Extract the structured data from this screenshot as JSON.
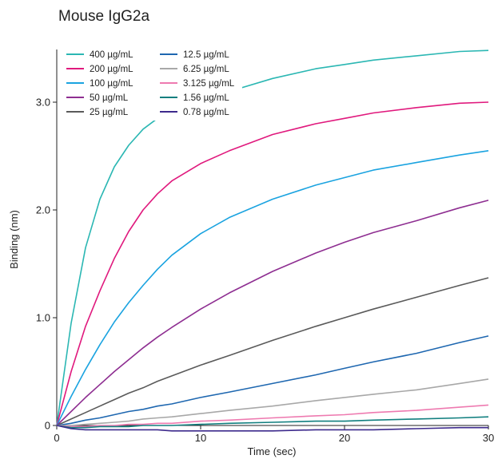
{
  "chart_data": {
    "type": "line",
    "title": "Mouse IgG2a",
    "xlabel": "Time (sec)",
    "ylabel": "Binding (nm)",
    "xlim": [
      0,
      30
    ],
    "ylim": [
      0,
      3.5
    ],
    "x_ticks": [
      0,
      10,
      20,
      30
    ],
    "x_tick_labels": [
      "0",
      "10",
      "20",
      "30"
    ],
    "y_ticks": [
      0,
      1.0,
      2.0,
      3.0
    ],
    "y_tick_labels": [
      "0",
      "1.0",
      "2.0",
      "3.0"
    ],
    "grid": false,
    "legend_position": "top-left",
    "x": [
      0,
      1,
      2,
      3,
      4,
      5,
      6,
      7,
      8,
      10,
      12,
      15,
      18,
      20,
      22,
      25,
      28,
      30
    ],
    "series": [
      {
        "name": "400 µg/mL",
        "color": "#2bb7b3",
        "values": [
          0,
          0.95,
          1.65,
          2.1,
          2.4,
          2.6,
          2.75,
          2.85,
          2.95,
          3.02,
          3.1,
          3.22,
          3.31,
          3.35,
          3.39,
          3.43,
          3.47,
          3.48
        ]
      },
      {
        "name": "200 µg/mL",
        "color": "#e0197d",
        "values": [
          0,
          0.5,
          0.92,
          1.25,
          1.55,
          1.8,
          2.0,
          2.15,
          2.27,
          2.43,
          2.55,
          2.7,
          2.8,
          2.85,
          2.9,
          2.95,
          2.99,
          3.0
        ]
      },
      {
        "name": "100 µg/mL",
        "color": "#1aa3e0",
        "values": [
          0,
          0.27,
          0.52,
          0.75,
          0.96,
          1.14,
          1.3,
          1.45,
          1.58,
          1.78,
          1.93,
          2.1,
          2.23,
          2.3,
          2.37,
          2.44,
          2.51,
          2.55
        ]
      },
      {
        "name": "50 µg/mL",
        "color": "#8e2e91",
        "values": [
          0,
          0.13,
          0.26,
          0.38,
          0.5,
          0.61,
          0.72,
          0.82,
          0.91,
          1.08,
          1.23,
          1.43,
          1.6,
          1.7,
          1.79,
          1.9,
          2.02,
          2.09
        ]
      },
      {
        "name": "25 µg/mL",
        "color": "#5a5a5a",
        "values": [
          0,
          0.06,
          0.12,
          0.18,
          0.24,
          0.3,
          0.35,
          0.41,
          0.46,
          0.56,
          0.65,
          0.79,
          0.92,
          1.0,
          1.08,
          1.19,
          1.3,
          1.37
        ]
      },
      {
        "name": "12.5 µg/mL",
        "color": "#1e67b0",
        "values": [
          0,
          0.02,
          0.05,
          0.07,
          0.1,
          0.13,
          0.15,
          0.18,
          0.2,
          0.26,
          0.31,
          0.39,
          0.47,
          0.53,
          0.59,
          0.67,
          0.77,
          0.83
        ]
      },
      {
        "name": "6.25 µg/mL",
        "color": "#a8a8a8",
        "values": [
          0,
          0.0,
          0.01,
          0.02,
          0.03,
          0.04,
          0.06,
          0.07,
          0.08,
          0.11,
          0.14,
          0.18,
          0.23,
          0.26,
          0.29,
          0.33,
          0.39,
          0.43
        ]
      },
      {
        "name": "3.125 µg/mL",
        "color": "#ee7ab0",
        "values": [
          0,
          -0.01,
          -0.01,
          0.0,
          0.0,
          0.01,
          0.01,
          0.02,
          0.02,
          0.04,
          0.05,
          0.07,
          0.09,
          0.1,
          0.12,
          0.14,
          0.17,
          0.19
        ]
      },
      {
        "name": "1.56 µg/mL",
        "color": "#117f7f",
        "values": [
          0,
          -0.02,
          -0.02,
          -0.01,
          -0.01,
          -0.01,
          0.0,
          0.0,
          0.0,
          0.01,
          0.02,
          0.03,
          0.04,
          0.04,
          0.05,
          0.06,
          0.07,
          0.08
        ]
      },
      {
        "name": "0.78 µg/mL",
        "color": "#3d2a8c",
        "values": [
          0,
          -0.03,
          -0.04,
          -0.04,
          -0.04,
          -0.04,
          -0.04,
          -0.04,
          -0.05,
          -0.05,
          -0.05,
          -0.05,
          -0.04,
          -0.04,
          -0.04,
          -0.03,
          -0.02,
          -0.02
        ]
      }
    ]
  }
}
